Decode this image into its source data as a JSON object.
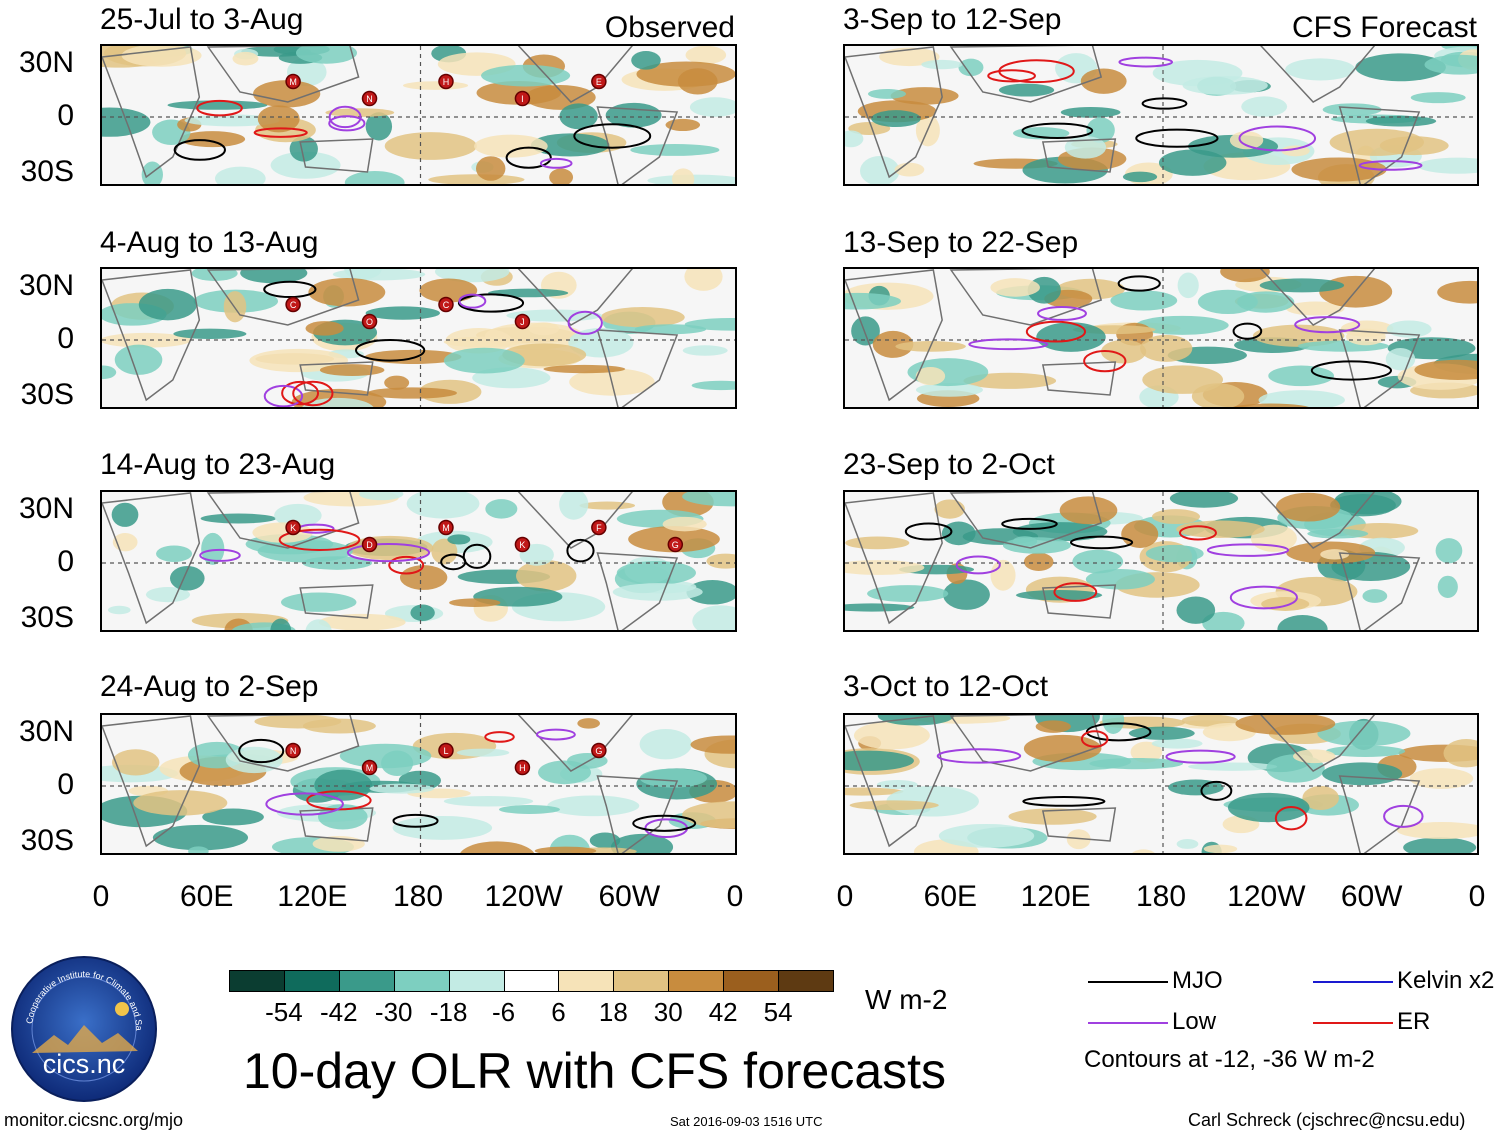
{
  "panels": {
    "observed": [
      {
        "period": "25-Jul to 3-Aug",
        "label": "Observed"
      },
      {
        "period": "4-Aug to 13-Aug",
        "label": ""
      },
      {
        "period": "14-Aug to 23-Aug",
        "label": ""
      },
      {
        "period": "24-Aug to 2-Sep",
        "label": ""
      }
    ],
    "forecast": [
      {
        "period": "3-Sep to 12-Sep",
        "label": "CFS Forecast"
      },
      {
        "period": "13-Sep to 22-Sep",
        "label": ""
      },
      {
        "period": "23-Sep to 2-Oct",
        "label": ""
      },
      {
        "period": "3-Oct to 12-Oct",
        "label": ""
      }
    ]
  },
  "lat_labels": [
    "30N",
    "0",
    "30S"
  ],
  "lon_labels": [
    "0",
    "60E",
    "120E",
    "180",
    "120W",
    "60W",
    "0"
  ],
  "storm_markers": {
    "p0": [
      "M",
      "N",
      "H",
      "I",
      "E"
    ],
    "p1": [
      "C",
      "O",
      "C",
      "J"
    ],
    "p2": [
      "K",
      "D",
      "M",
      "K",
      "F",
      "G"
    ],
    "p3": [
      "N",
      "M",
      "L",
      "H",
      "G"
    ]
  },
  "colorbar": {
    "colors": [
      "#0b3d31",
      "#0f6b5c",
      "#3a9a8a",
      "#7dcfc0",
      "#c3ebe4",
      "#ffffff",
      "#f6e3b8",
      "#e2c383",
      "#c88c3e",
      "#9b5f1e",
      "#5e3a12"
    ],
    "ticks": [
      "-54",
      "-42",
      "-30",
      "-18",
      "-6",
      "6",
      "18",
      "30",
      "42",
      "54"
    ],
    "units": "W m-2"
  },
  "main_title": "10-day OLR with CFS forecasts",
  "logo_text": "cics.nc",
  "logo_ring_text": "Cooperative Institute for Climate and Satellites",
  "legend": {
    "items": [
      {
        "name": "MJO",
        "color": "#000000"
      },
      {
        "name": "Kelvin x2",
        "color": "#1a1ad0"
      },
      {
        "name": "Low",
        "color": "#a040e0"
      },
      {
        "name": "ER",
        "color": "#e01818"
      }
    ],
    "contours_note": "Contours at -12, -36 W m-2"
  },
  "footer": {
    "url": "monitor.cicsnc.org/mjo",
    "timestamp": "Sat 2016-09-03 1516 UTC",
    "author": "Carl Schreck (cjschrec@ncsu.edu)"
  }
}
